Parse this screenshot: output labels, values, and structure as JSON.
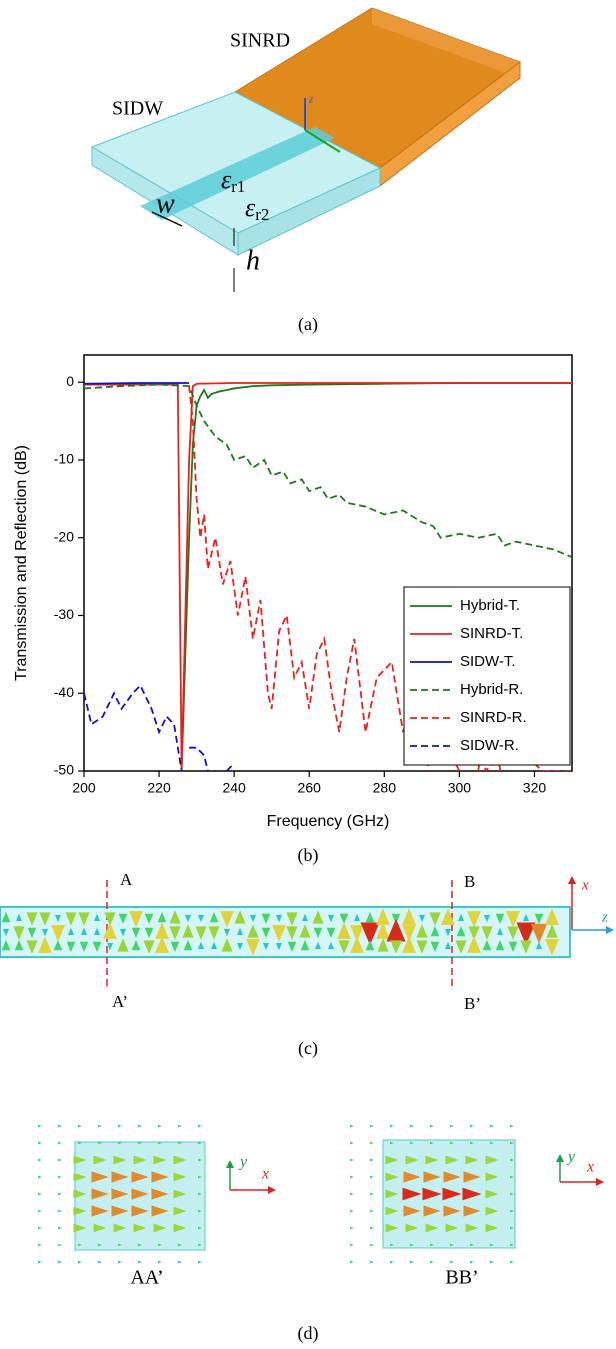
{
  "panel_a": {
    "label_sinrd": "SINRD",
    "label_sidw": "SIDW",
    "eps_r1": {
      "symbol": "ε",
      "subscript": "r1"
    },
    "eps_r2": {
      "symbol": "ε",
      "subscript": "r2"
    },
    "width": "w",
    "height": "h",
    "axis_z": "z",
    "caption": "(a)"
  },
  "chart_data": {
    "type": "line",
    "xlabel": "Frequency (GHz)",
    "ylabel": "Transmission and Reflection (dB)",
    "xlim": [
      200,
      330
    ],
    "xticks": [
      200,
      220,
      240,
      260,
      280,
      300,
      320
    ],
    "ylim": [
      -50,
      3.5
    ],
    "yticks": [
      0,
      -10,
      -20,
      -30,
      -40,
      -50
    ],
    "legend": "lower right",
    "series": [
      {
        "name": "Hybrid-T.",
        "color": "#1a7a1a",
        "style": "solid",
        "x": [
          226,
          227,
          228,
          229,
          230,
          231,
          232,
          233,
          234,
          236,
          238,
          240,
          245,
          250,
          260,
          280,
          300,
          330
        ],
        "values": [
          -50,
          -35,
          -20,
          -8,
          -3,
          -1.8,
          -1,
          -2,
          -1.5,
          -1.2,
          -1.0,
          -0.8,
          -0.5,
          -0.4,
          -0.3,
          -0.2,
          -0.1,
          -0.1
        ]
      },
      {
        "name": "SINRD-T.",
        "color": "#e8221b",
        "style": "solid",
        "x": [
          200,
          225,
          226,
          227,
          228,
          229,
          230,
          240,
          330
        ],
        "values": [
          -0.3,
          -0.3,
          -50,
          -30,
          -10,
          -0.5,
          -0.2,
          -0.1,
          -0.1
        ]
      },
      {
        "name": "SIDW-T.",
        "color": "#1010c8",
        "style": "solid",
        "x": [
          200,
          215,
          228
        ],
        "values": [
          -0.2,
          -0.1,
          -0.1
        ]
      },
      {
        "name": "Hybrid-R.",
        "color": "#1a7a1a",
        "style": "dashed",
        "x": [
          200,
          210,
          220,
          228,
          230,
          232,
          235,
          238,
          240,
          243,
          245,
          248,
          250,
          253,
          255,
          258,
          260,
          263,
          265,
          268,
          270,
          275,
          280,
          285,
          290,
          293,
          295,
          300,
          305,
          310,
          312,
          315,
          320,
          325,
          330
        ],
        "values": [
          -0.8,
          -0.5,
          -0.3,
          -0.5,
          -3,
          -5,
          -7,
          -8,
          -10,
          -9.5,
          -11,
          -10,
          -12,
          -11.5,
          -13,
          -12.5,
          -14,
          -13.5,
          -15,
          -14.5,
          -15.5,
          -16,
          -17,
          -16.5,
          -18,
          -18.5,
          -20,
          -19.5,
          -20,
          -19.5,
          -21,
          -20.5,
          -21,
          -21.5,
          -22.5
        ]
      },
      {
        "name": "SINRD-R.",
        "color": "#e8221b",
        "style": "dashed",
        "x": [
          228,
          229,
          230,
          231,
          232,
          233,
          235,
          237,
          239,
          241,
          243,
          245,
          247,
          249,
          250,
          252,
          254,
          256,
          258,
          260,
          262,
          264,
          266,
          268,
          270,
          272,
          275,
          278,
          282,
          285,
          288,
          292,
          null,
          298,
          300,
          null,
          305,
          306,
          307,
          309,
          310,
          311,
          null,
          320,
          322,
          330
        ],
        "values": [
          -0.5,
          -5,
          -15,
          -20,
          -17,
          -24,
          -20,
          -26,
          -23,
          -30,
          -25,
          -33,
          -28,
          -40,
          -42,
          -32,
          -30,
          -38,
          -36,
          -42,
          -35,
          -33,
          -40,
          -45,
          -38,
          -33,
          -45,
          -38,
          -36,
          -45,
          -40,
          -50,
          null,
          -48,
          -50,
          null,
          -50,
          -47,
          -50,
          -49,
          -48,
          -50,
          null,
          -49,
          -50,
          -50
        ]
      },
      {
        "name": "SIDW-R.",
        "color": "#1010c8",
        "style": "dashed",
        "x": [
          200,
          202,
          205,
          208,
          210,
          213,
          215,
          218,
          220,
          222,
          224,
          226,
          null,
          228,
          230,
          232,
          233,
          null,
          238,
          240
        ],
        "values": [
          -40,
          -44,
          -43,
          -40,
          -42,
          -40,
          -39,
          -42,
          -45,
          -43,
          -44,
          -50,
          null,
          -47,
          -47,
          -48,
          -50,
          null,
          -50,
          -49
        ]
      }
    ],
    "caption": "(b)"
  },
  "panel_c": {
    "label_a": "A",
    "label_a_prime": "A’",
    "label_b": "B",
    "label_b_prime": "B’",
    "axis_x": "x",
    "axis_z": "z",
    "caption": "(c)"
  },
  "panel_d": {
    "label_aa": "AA’",
    "label_bb": "BB’",
    "axis_y_1": "y",
    "axis_x_1": "x",
    "axis_y_2": "y",
    "axis_x_2": "x",
    "caption": "(d)"
  }
}
